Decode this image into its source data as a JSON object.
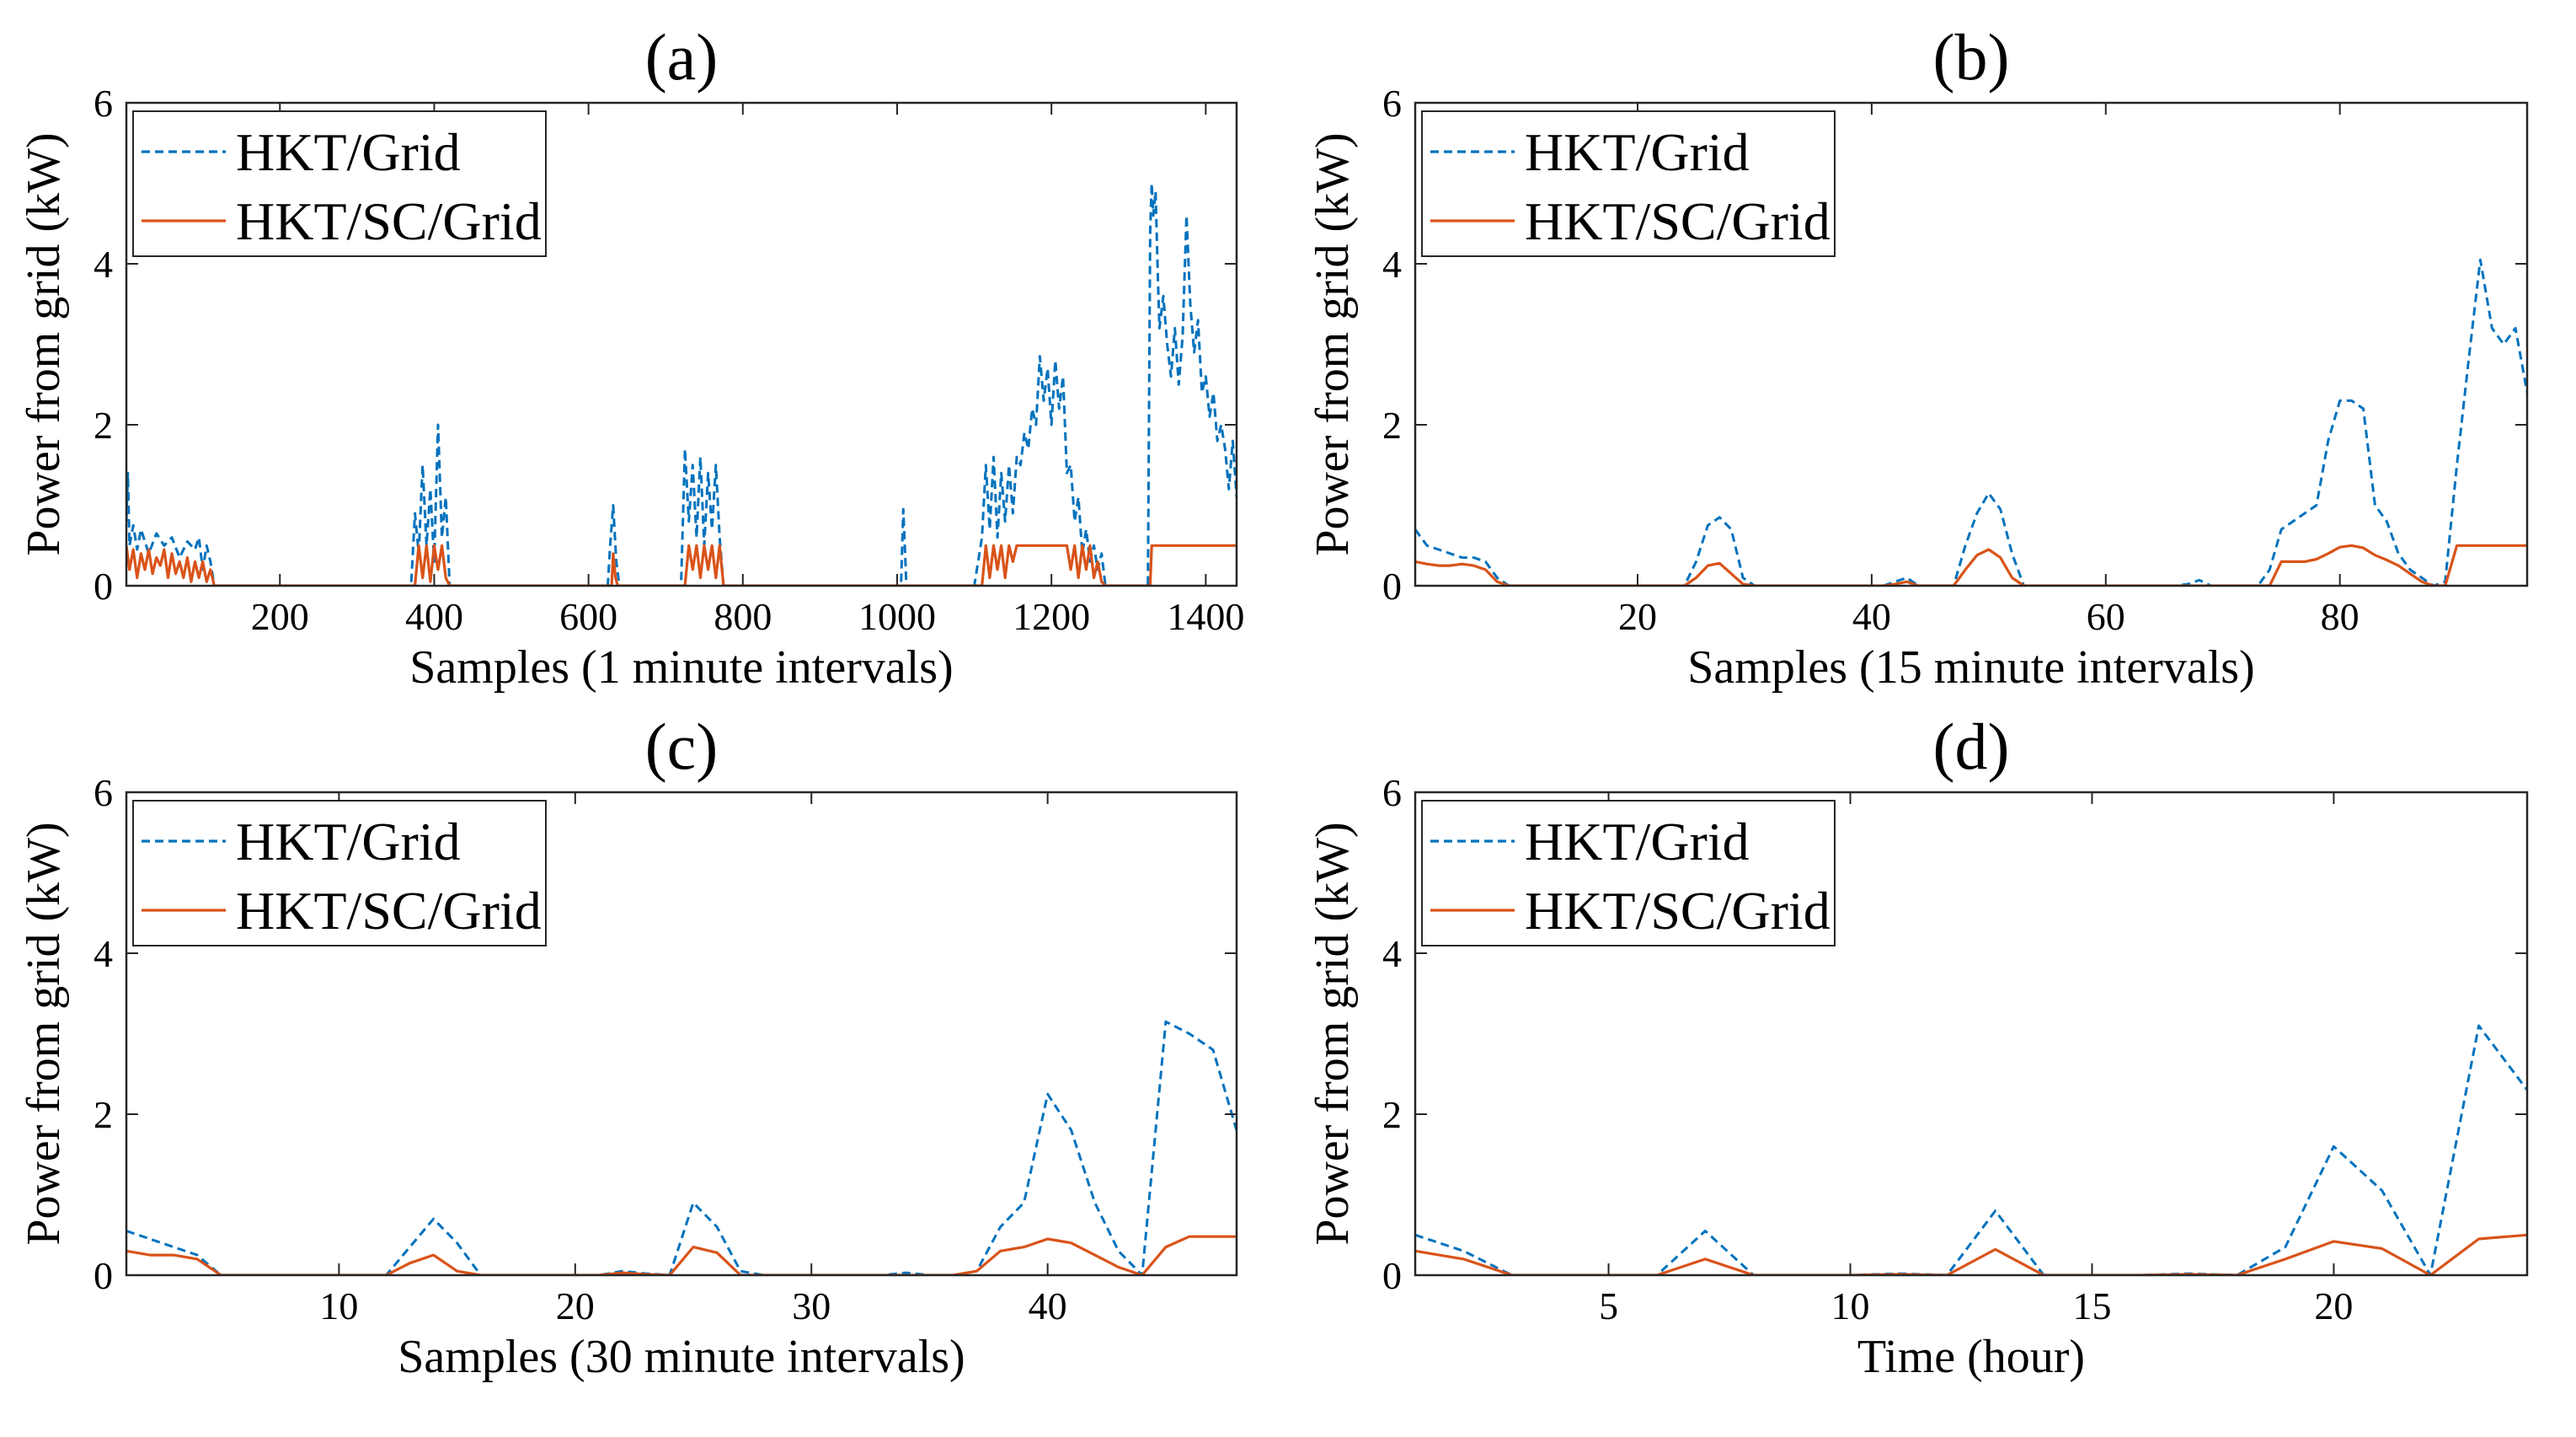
{
  "chart_data": [
    {
      "type": "line",
      "title": "(a)",
      "xlabel": "Samples (1 minute intervals)",
      "ylabel": "Power from grid (kW)",
      "xlim": [
        1,
        1440
      ],
      "ylim": [
        0,
        6
      ],
      "xticks": [
        200,
        400,
        600,
        800,
        1000,
        1200,
        1400
      ],
      "yticks": [
        0,
        2,
        4,
        6
      ],
      "legend_position": "top-left",
      "series": [
        {
          "name": "HKT/Grid",
          "color": "#0072BD",
          "style": "dashed",
          "x": [
            1,
            3,
            5,
            10,
            15,
            20,
            30,
            40,
            50,
            60,
            70,
            80,
            90,
            95,
            100,
            105,
            110,
            115,
            370,
            375,
            380,
            385,
            390,
            395,
            400,
            405,
            410,
            415,
            420,
            625,
            628,
            632,
            636,
            640,
            720,
            725,
            730,
            735,
            740,
            745,
            750,
            755,
            760,
            765,
            770,
            775,
            1005,
            1008,
            1012,
            1100,
            1110,
            1115,
            1120,
            1125,
            1130,
            1135,
            1140,
            1145,
            1150,
            1155,
            1160,
            1165,
            1170,
            1175,
            1180,
            1185,
            1190,
            1195,
            1200,
            1205,
            1210,
            1215,
            1220,
            1225,
            1230,
            1235,
            1240,
            1245,
            1250,
            1255,
            1260,
            1265,
            1270,
            1325,
            1328,
            1330,
            1332,
            1335,
            1338,
            1340,
            1345,
            1350,
            1355,
            1360,
            1365,
            1370,
            1375,
            1380,
            1385,
            1390,
            1395,
            1400,
            1405,
            1410,
            1415,
            1420,
            1425,
            1430,
            1435,
            1440
          ],
          "y": [
            0.8,
            1.4,
            0.5,
            0.75,
            0.45,
            0.7,
            0.4,
            0.65,
            0.5,
            0.6,
            0.35,
            0.55,
            0.45,
            0.6,
            0.2,
            0.5,
            0.3,
            0,
            0,
            0.9,
            0.4,
            1.5,
            0.5,
            1.2,
            0.3,
            2.0,
            0.6,
            1.1,
            0,
            0,
            0.5,
            1.0,
            0.3,
            0,
            0,
            1.7,
            0.8,
            1.5,
            0.6,
            1.6,
            0.5,
            1.4,
            0.7,
            1.5,
            0.6,
            0,
            0,
            0.95,
            0,
            0,
            0.6,
            1.5,
            0.7,
            1.6,
            0.6,
            1.4,
            0.8,
            1.5,
            0.9,
            1.6,
            1.5,
            1.9,
            1.7,
            2.2,
            2.0,
            2.85,
            2.3,
            2.7,
            2.0,
            2.8,
            2.2,
            2.6,
            1.4,
            1.5,
            0.8,
            1.1,
            0.4,
            0.7,
            0.3,
            0.5,
            0.2,
            0.4,
            0,
            0,
            4.4,
            5.0,
            4.6,
            4.9,
            3.8,
            3.2,
            3.6,
            3.0,
            2.6,
            3.2,
            2.5,
            3.1,
            4.6,
            3.5,
            2.9,
            3.3,
            2.4,
            2.6,
            2.1,
            2.4,
            1.8,
            2.0,
            1.7,
            1.2,
            1.8,
            1.1
          ]
        },
        {
          "name": "HKT/SC/Grid",
          "color": "#D95319",
          "style": "solid",
          "x": [
            1,
            5,
            10,
            15,
            20,
            25,
            30,
            35,
            40,
            45,
            50,
            55,
            60,
            65,
            70,
            75,
            80,
            85,
            90,
            95,
            100,
            105,
            110,
            115,
            375,
            380,
            385,
            390,
            395,
            400,
            405,
            410,
            415,
            420,
            630,
            632,
            635,
            638,
            725,
            730,
            735,
            740,
            745,
            750,
            755,
            760,
            765,
            770,
            775,
            1110,
            1115,
            1120,
            1125,
            1130,
            1135,
            1140,
            1145,
            1150,
            1155,
            1160,
            1165,
            1170,
            1175,
            1180,
            1185,
            1190,
            1195,
            1200,
            1205,
            1210,
            1215,
            1220,
            1225,
            1230,
            1235,
            1240,
            1245,
            1250,
            1255,
            1260,
            1265,
            1270,
            1328,
            1330,
            1440
          ],
          "y": [
            0.5,
            0.2,
            0.45,
            0.1,
            0.4,
            0.2,
            0.45,
            0.15,
            0.35,
            0.25,
            0.45,
            0.1,
            0.4,
            0.15,
            0.3,
            0.1,
            0.35,
            0.05,
            0.3,
            0.1,
            0.3,
            0.05,
            0.2,
            0,
            0,
            0.5,
            0.1,
            0.5,
            0.05,
            0.5,
            0.2,
            0.5,
            0.1,
            0,
            0,
            0.4,
            0.1,
            0,
            0,
            0.5,
            0.2,
            0.5,
            0.1,
            0.5,
            0.2,
            0.5,
            0.1,
            0.5,
            0,
            0,
            0.5,
            0.1,
            0.5,
            0.2,
            0.5,
            0.1,
            0.5,
            0.3,
            0.5,
            0.5,
            0.5,
            0.5,
            0.5,
            0.5,
            0.5,
            0.5,
            0.5,
            0.5,
            0.5,
            0.5,
            0.5,
            0.5,
            0.2,
            0.5,
            0.1,
            0.5,
            0.2,
            0.5,
            0.1,
            0.3,
            0.05,
            0,
            0,
            0.5,
            0.5
          ]
        }
      ]
    },
    {
      "type": "line",
      "title": "(b)",
      "xlabel": "Samples (15 minute intervals)",
      "ylabel": "Power from grid (kW)",
      "xlim": [
        1,
        96
      ],
      "ylim": [
        0,
        6
      ],
      "xticks": [
        20,
        40,
        60,
        80
      ],
      "yticks": [
        0,
        2,
        4,
        6
      ],
      "legend_position": "top-left",
      "series": [
        {
          "name": "HKT/Grid",
          "color": "#0072BD",
          "style": "dashed",
          "x": [
            1,
            2,
            3,
            4,
            5,
            6,
            7,
            8,
            9,
            10,
            24,
            25,
            26,
            27,
            28,
            29,
            30,
            41,
            42,
            43,
            44,
            47,
            48,
            49,
            50,
            51,
            52,
            53,
            54,
            66,
            67,
            68,
            69,
            70,
            73,
            74,
            75,
            76,
            77,
            78,
            79,
            80,
            81,
            82,
            83,
            84,
            85,
            86,
            87,
            88,
            89,
            90,
            91,
            92,
            93,
            94,
            95,
            96
          ],
          "y": [
            0.7,
            0.5,
            0.45,
            0.4,
            0.35,
            0.35,
            0.3,
            0.1,
            0,
            0,
            0,
            0.3,
            0.75,
            0.85,
            0.7,
            0.1,
            0,
            0,
            0.05,
            0.1,
            0,
            0,
            0.5,
            0.9,
            1.15,
            0.95,
            0.4,
            0,
            0,
            0,
            0.02,
            0.07,
            0,
            0,
            0,
            0.2,
            0.7,
            0.8,
            0.9,
            1.0,
            1.8,
            2.3,
            2.3,
            2.2,
            1.0,
            0.8,
            0.4,
            0.2,
            0.1,
            0,
            0.05,
            1.5,
            2.8,
            4.05,
            3.2,
            3.0,
            3.2,
            2.4
          ]
        },
        {
          "name": "HKT/SC/Grid",
          "color": "#D95319",
          "style": "solid",
          "x": [
            1,
            2,
            3,
            4,
            5,
            6,
            7,
            8,
            9,
            10,
            24,
            25,
            26,
            27,
            28,
            29,
            30,
            41,
            42,
            43,
            44,
            47,
            48,
            49,
            50,
            51,
            52,
            53,
            74,
            75,
            76,
            77,
            78,
            79,
            80,
            81,
            82,
            83,
            84,
            85,
            86,
            87,
            88,
            89,
            90,
            96
          ],
          "y": [
            0.3,
            0.27,
            0.25,
            0.25,
            0.27,
            0.25,
            0.2,
            0.05,
            0,
            0,
            0,
            0.1,
            0.25,
            0.28,
            0.15,
            0.02,
            0,
            0,
            0.02,
            0.05,
            0,
            0,
            0.2,
            0.38,
            0.45,
            0.35,
            0.1,
            0,
            0,
            0.3,
            0.3,
            0.3,
            0.33,
            0.4,
            0.48,
            0.5,
            0.47,
            0.38,
            0.32,
            0.25,
            0.15,
            0.05,
            0,
            0,
            0.5,
            0.5
          ]
        }
      ]
    },
    {
      "type": "line",
      "title": "(c)",
      "xlabel": "Samples (30 minute intervals)",
      "ylabel": "Power from grid (kW)",
      "xlim": [
        1,
        48
      ],
      "ylim": [
        0,
        6
      ],
      "xticks": [
        10,
        20,
        30,
        40
      ],
      "yticks": [
        0,
        2,
        4,
        6
      ],
      "legend_position": "top-left",
      "series": [
        {
          "name": "HKT/Grid",
          "color": "#0072BD",
          "style": "dashed",
          "x": [
            1,
            2,
            3,
            4,
            5,
            6,
            12,
            13,
            14,
            15,
            16,
            21,
            22,
            23,
            24,
            25,
            26,
            27,
            28,
            33,
            34,
            35,
            36,
            37,
            38,
            39,
            40,
            41,
            42,
            43,
            44,
            45,
            46,
            47,
            48
          ],
          "y": [
            0.55,
            0.45,
            0.35,
            0.25,
            0,
            0,
            0,
            0.35,
            0.7,
            0.4,
            0,
            0,
            0.05,
            0.02,
            0,
            0.9,
            0.6,
            0.05,
            0,
            0,
            0.03,
            0,
            0,
            0.05,
            0.6,
            0.9,
            2.25,
            1.8,
            0.9,
            0.3,
            0,
            3.15,
            3.0,
            2.8,
            1.8
          ]
        },
        {
          "name": "HKT/SC/Grid",
          "color": "#D95319",
          "style": "solid",
          "x": [
            1,
            2,
            3,
            4,
            5,
            6,
            12,
            13,
            14,
            15,
            16,
            21,
            22,
            23,
            24,
            25,
            26,
            27,
            36,
            37,
            38,
            39,
            40,
            41,
            42,
            43,
            44,
            45,
            46,
            47,
            48
          ],
          "y": [
            0.3,
            0.25,
            0.25,
            0.2,
            0,
            0,
            0,
            0.15,
            0.25,
            0.05,
            0,
            0,
            0.03,
            0.01,
            0,
            0.35,
            0.28,
            0,
            0,
            0.05,
            0.3,
            0.35,
            0.45,
            0.4,
            0.25,
            0.1,
            0,
            0.35,
            0.48,
            0.48,
            0.48
          ]
        }
      ]
    },
    {
      "type": "line",
      "title": "(d)",
      "xlabel": "Time (hour)",
      "ylabel": "Power from grid (kW)",
      "xlim": [
        1,
        24
      ],
      "ylim": [
        0,
        6
      ],
      "xticks": [
        5,
        10,
        15,
        20
      ],
      "yticks": [
        0,
        2,
        4,
        6
      ],
      "legend_position": "top-left",
      "series": [
        {
          "name": "HKT/Grid",
          "color": "#0072BD",
          "style": "dashed",
          "x": [
            1,
            2,
            3,
            4,
            5,
            6,
            7,
            8,
            9,
            10,
            11,
            12,
            13,
            14,
            15,
            16,
            17,
            18,
            19,
            20,
            21,
            22,
            23,
            24
          ],
          "y": [
            0.5,
            0.3,
            0,
            0,
            0,
            0,
            0.55,
            0,
            0,
            0,
            0.02,
            0,
            0.8,
            0,
            0,
            0,
            0.02,
            0,
            0.35,
            1.6,
            1.05,
            0,
            3.1,
            2.3
          ]
        },
        {
          "name": "HKT/SC/Grid",
          "color": "#D95319",
          "style": "solid",
          "x": [
            1,
            2,
            3,
            4,
            5,
            6,
            7,
            8,
            9,
            10,
            11,
            12,
            13,
            14,
            15,
            16,
            17,
            18,
            19,
            20,
            21,
            22,
            23,
            24
          ],
          "y": [
            0.3,
            0.2,
            0,
            0,
            0,
            0,
            0.2,
            0,
            0,
            0,
            0.01,
            0,
            0.32,
            0,
            0,
            0,
            0.01,
            0,
            0.2,
            0.42,
            0.33,
            0,
            0.45,
            0.5
          ]
        }
      ]
    }
  ]
}
